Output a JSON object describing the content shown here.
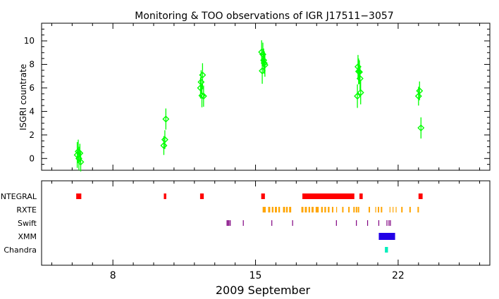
{
  "chart_data": [
    {
      "type": "scatter",
      "title": "Monitoring & TOO observations of IGR J17511−3057",
      "ylabel": "ISGRI countrate",
      "xlim": [
        4.5,
        26.5
      ],
      "ylim": [
        -1,
        11.5
      ],
      "y_ticks": [
        "0",
        "2",
        "4",
        "6",
        "8",
        "10"
      ],
      "marker": "diamond",
      "color": "#00ff00",
      "series": [
        {
          "x": [
            6.25,
            6.3,
            6.33,
            6.38,
            6.42,
            10.5,
            10.55,
            10.6,
            12.3,
            12.33,
            12.37,
            12.4,
            12.45,
            15.3,
            15.33,
            15.36,
            15.4,
            15.43,
            15.46,
            20.0,
            20.03,
            20.06,
            20.1,
            20.13,
            20.16,
            23.0,
            23.05,
            23.12
          ],
          "y": [
            0.3,
            0.6,
            0.0,
            0.45,
            -0.3,
            1.1,
            1.6,
            3.35,
            6.0,
            6.5,
            5.35,
            7.1,
            5.3,
            9.05,
            7.45,
            8.85,
            8.35,
            8.1,
            7.95,
            5.3,
            7.8,
            7.4,
            7.35,
            6.8,
            5.6,
            5.3,
            5.75,
            2.6
          ],
          "err": [
            1.1,
            1.0,
            1.0,
            0.8,
            0.8,
            0.8,
            0.8,
            0.9,
            0.9,
            1.0,
            1.0,
            1.0,
            0.9,
            1.0,
            1.1,
            1.0,
            1.0,
            0.9,
            1.0,
            1.0,
            1.0,
            1.1,
            1.0,
            1.0,
            1.0,
            0.8,
            0.8,
            0.9
          ]
        }
      ]
    },
    {
      "type": "timeline",
      "xlabel": "2009 September",
      "xlim": [
        4.5,
        26.5
      ],
      "x_ticks": [
        "8",
        "15",
        "22"
      ],
      "categories": [
        "INTEGRAL",
        "RXTE",
        "Swift",
        "XMM",
        "Chandra"
      ],
      "series": [
        {
          "name": "INTEGRAL",
          "color": "#ff0000",
          "intervals": [
            [
              6.2,
              6.45
            ],
            [
              10.5,
              10.62
            ],
            [
              12.28,
              12.46
            ],
            [
              15.28,
              15.46
            ],
            [
              17.3,
              19.85
            ],
            [
              20.1,
              20.26
            ],
            [
              23.0,
              23.2
            ]
          ]
        },
        {
          "name": "RXTE",
          "color": "#ffa500",
          "intervals": [
            [
              15.35,
              15.5
            ],
            [
              15.62,
              15.72
            ],
            [
              15.8,
              15.88
            ],
            [
              15.95,
              16.05
            ],
            [
              16.12,
              16.2
            ],
            [
              16.35,
              16.45
            ],
            [
              16.5,
              16.58
            ],
            [
              16.65,
              16.75
            ],
            [
              17.25,
              17.35
            ],
            [
              17.42,
              17.52
            ],
            [
              17.6,
              17.68
            ],
            [
              17.75,
              17.85
            ],
            [
              17.95,
              18.1
            ],
            [
              18.22,
              18.3
            ],
            [
              18.38,
              18.46
            ],
            [
              18.55,
              18.63
            ],
            [
              18.75,
              18.82
            ],
            [
              19.25,
              19.3
            ],
            [
              19.55,
              19.6
            ],
            [
              19.8,
              19.86
            ],
            [
              19.92,
              19.97
            ],
            [
              20.02,
              20.07
            ],
            [
              20.55,
              20.6
            ],
            [
              21.0,
              21.05
            ],
            [
              21.15,
              21.2
            ],
            [
              22.15,
              22.2
            ],
            [
              22.55,
              22.62
            ],
            [
              22.95,
              23.0
            ]
          ],
          "ticks": [
            18.98,
            20.9,
            21.6,
            21.75,
            21.9
          ]
        },
        {
          "name": "Swift",
          "color": "#800080",
          "ticks": [
            13.6,
            13.65,
            13.7,
            13.76,
            14.4,
            15.8,
            16.82,
            18.97,
            19.95,
            20.5,
            21.05,
            21.45,
            21.55,
            21.62
          ]
        },
        {
          "name": "XMM",
          "color": "#2200e6",
          "intervals": [
            [
              21.05,
              21.85
            ]
          ]
        },
        {
          "name": "Chandra",
          "color": "#00eebb",
          "intervals": [
            [
              21.35,
              21.5
            ]
          ]
        }
      ]
    }
  ]
}
